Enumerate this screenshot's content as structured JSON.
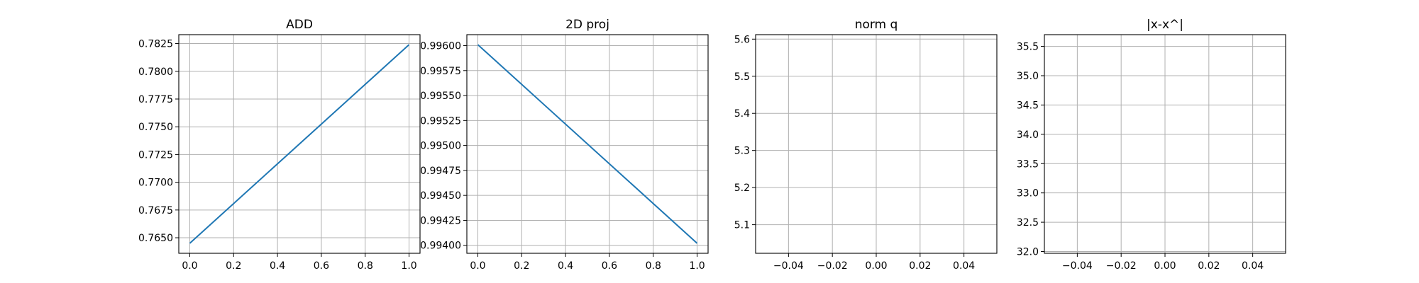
{
  "chart_data": [
    {
      "type": "line",
      "title": "ADD",
      "xlabel": "",
      "ylabel": "",
      "grid": true,
      "xlim": [
        -0.05,
        1.05
      ],
      "ylim": [
        0.7636,
        0.7833
      ],
      "xticks": [
        "0.0",
        "0.2",
        "0.4",
        "0.6",
        "0.8",
        "1.0"
      ],
      "yticks": [
        "0.7650",
        "0.7675",
        "0.7700",
        "0.7725",
        "0.7750",
        "0.7775",
        "0.7800",
        "0.7825"
      ],
      "series": [
        {
          "color": "#1f77b4",
          "x": [
            0,
            1
          ],
          "y": [
            0.7645,
            0.7824
          ]
        }
      ]
    },
    {
      "type": "line",
      "title": "2D proj",
      "xlabel": "",
      "ylabel": "",
      "grid": true,
      "xlim": [
        -0.05,
        1.05
      ],
      "ylim": [
        0.99392,
        0.99611
      ],
      "xticks": [
        "0.0",
        "0.2",
        "0.4",
        "0.6",
        "0.8",
        "1.0"
      ],
      "yticks": [
        "0.99400",
        "0.99425",
        "0.99450",
        "0.99475",
        "0.99500",
        "0.99525",
        "0.99550",
        "0.99575",
        "0.99600"
      ],
      "series": [
        {
          "color": "#1f77b4",
          "x": [
            0,
            1
          ],
          "y": [
            0.99601,
            0.99402
          ]
        }
      ]
    },
    {
      "type": "line",
      "title": "norm q",
      "xlabel": "",
      "ylabel": "",
      "grid": true,
      "xlim": [
        -0.055,
        0.055
      ],
      "ylim": [
        5.023,
        5.612
      ],
      "xticks": [
        "−0.04",
        "−0.02",
        "0.00",
        "0.02",
        "0.04"
      ],
      "yticks": [
        "5.1",
        "5.2",
        "5.3",
        "5.4",
        "5.5",
        "5.6"
      ],
      "series": [
        {
          "color": "#1f77b4",
          "x": [
            0
          ],
          "y": [
            5.6
          ]
        }
      ]
    },
    {
      "type": "line",
      "title": "|x-x^|",
      "xlabel": "",
      "ylabel": "",
      "grid": true,
      "xlim": [
        -0.055,
        0.055
      ],
      "ylim": [
        31.97,
        35.7
      ],
      "xticks": [
        "−0.04",
        "−0.02",
        "0.00",
        "0.02",
        "0.04"
      ],
      "yticks": [
        "32.0",
        "32.5",
        "33.0",
        "33.5",
        "34.0",
        "34.5",
        "35.0",
        "35.5"
      ],
      "series": [
        {
          "color": "#1f77b4",
          "x": [
            0
          ],
          "y": [
            32.0
          ]
        }
      ]
    }
  ]
}
